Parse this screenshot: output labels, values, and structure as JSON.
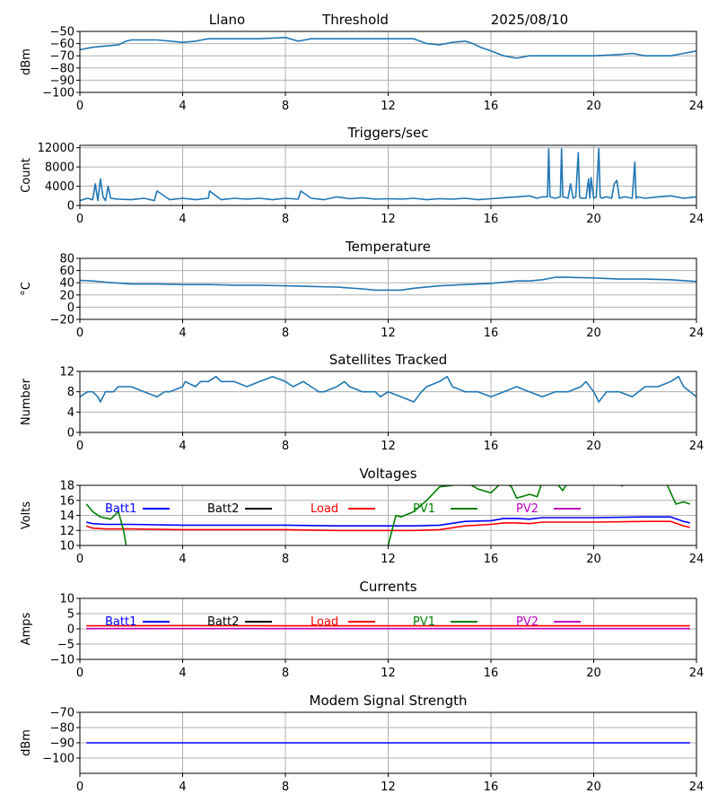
{
  "header": {
    "site": "Llano",
    "label": "Threshold",
    "date": "2025/08/10"
  },
  "colors": {
    "default": "#1f77b4",
    "grid": "#b0b0b0",
    "Batt1": "#0000ff",
    "Batt2": "#000000",
    "Load": "#ff0000",
    "PV1": "#008000",
    "PV2": "#bf00bf"
  },
  "chart_data": [
    {
      "id": "threshold",
      "type": "line",
      "title": "",
      "ylabel": "dBm",
      "xlim": [
        0,
        24
      ],
      "ylim": [
        -100,
        -50
      ],
      "xticks": [
        0,
        4,
        8,
        12,
        16,
        20,
        24
      ],
      "yticks": [
        -100,
        -90,
        -80,
        -70,
        -60,
        -50
      ],
      "series": [
        {
          "color": "default",
          "x": [
            0,
            0.5,
            1,
            1.5,
            1.8,
            2,
            3,
            4,
            4.5,
            5,
            6,
            7,
            8,
            8.5,
            9,
            10,
            11,
            12,
            13,
            13.5,
            14,
            14.5,
            15,
            15.3,
            15.6,
            16,
            16.5,
            17,
            17.5,
            18,
            18.5,
            19,
            20,
            21,
            21.5,
            22,
            23,
            23.5,
            24
          ],
          "y": [
            -65,
            -63,
            -62,
            -61,
            -58,
            -57,
            -57,
            -59,
            -58,
            -56,
            -56,
            -56,
            -55,
            -58,
            -56,
            -56,
            -56,
            -56,
            -56,
            -60,
            -61,
            -59,
            -58,
            -60,
            -63,
            -66,
            -70,
            -72,
            -70,
            -70,
            -70,
            -70,
            -70,
            -69,
            -68,
            -70,
            -70,
            -68,
            -66
          ]
        }
      ]
    },
    {
      "id": "triggers",
      "type": "line",
      "title": "Triggers/sec",
      "ylabel": "Count",
      "xlim": [
        0,
        24
      ],
      "ylim": [
        0,
        12500
      ],
      "xticks": [
        0,
        4,
        8,
        12,
        16,
        20,
        24
      ],
      "yticks": [
        0,
        4000,
        8000,
        12000
      ],
      "series": [
        {
          "color": "default",
          "x": [
            0,
            0.3,
            0.5,
            0.6,
            0.7,
            0.8,
            0.9,
            1.0,
            1.1,
            1.2,
            1.5,
            2.0,
            2.5,
            2.9,
            3.0,
            3.5,
            4.0,
            4.5,
            5.0,
            5.05,
            5.5,
            6.0,
            6.5,
            7.0,
            7.5,
            8.0,
            8.5,
            8.6,
            9.0,
            9.5,
            10.0,
            10.5,
            11.0,
            11.5,
            12.0,
            12.5,
            13.0,
            13.5,
            14.0,
            14.5,
            15.0,
            15.5,
            16.0,
            16.5,
            17.0,
            17.5,
            17.8,
            18.0,
            18.2,
            18.25,
            18.3,
            18.5,
            18.7,
            18.75,
            18.8,
            19.0,
            19.1,
            19.2,
            19.3,
            19.4,
            19.45,
            19.5,
            19.7,
            19.8,
            19.85,
            19.9,
            20.0,
            20.1,
            20.2,
            20.25,
            20.3,
            20.5,
            20.7,
            20.8,
            20.9,
            21.0,
            21.2,
            21.5,
            21.6,
            21.65,
            21.7,
            22.0,
            22.5,
            23.0,
            23.5,
            24.0
          ],
          "y": [
            1000,
            1500,
            1200,
            4500,
            1000,
            5500,
            1800,
            1000,
            4000,
            1500,
            1300,
            1200,
            1500,
            1000,
            3000,
            1200,
            1500,
            1200,
            1500,
            3000,
            1200,
            1500,
            1300,
            1500,
            1200,
            1500,
            1300,
            3000,
            1500,
            1200,
            1800,
            1400,
            1600,
            1300,
            1400,
            1300,
            1500,
            1200,
            1400,
            1300,
            1500,
            1200,
            1400,
            1600,
            1800,
            2000,
            1500,
            1800,
            1800,
            11800,
            1800,
            1500,
            1800,
            11800,
            1800,
            1500,
            4500,
            1500,
            1800,
            11000,
            1800,
            1500,
            1500,
            5500,
            1500,
            5800,
            1500,
            1800,
            11800,
            1800,
            1500,
            1800,
            1500,
            4500,
            5200,
            1500,
            1800,
            1500,
            9000,
            1500,
            1800,
            1500,
            1800,
            2000,
            1500,
            1800
          ]
        }
      ]
    },
    {
      "id": "temperature",
      "type": "line",
      "title": "Temperature",
      "ylabel": "°C",
      "xlim": [
        0,
        24
      ],
      "ylim": [
        -20,
        80
      ],
      "xticks": [
        0,
        4,
        8,
        12,
        16,
        20,
        24
      ],
      "yticks": [
        -20,
        0,
        20,
        40,
        60,
        80
      ],
      "series": [
        {
          "color": "default",
          "x": [
            0,
            0.5,
            1,
            2,
            3,
            4,
            5,
            6,
            7,
            8,
            9,
            10,
            11,
            11.5,
            12,
            12.5,
            13,
            14,
            15,
            16,
            16.5,
            17,
            17.5,
            18,
            18.5,
            19,
            20,
            20.5,
            21,
            22,
            23,
            24
          ],
          "y": [
            44,
            43,
            41,
            38,
            38,
            37,
            37,
            36,
            36,
            35,
            34,
            33,
            30,
            28,
            28,
            28,
            31,
            35,
            37,
            39,
            41,
            43,
            43,
            45,
            49,
            49,
            48,
            47,
            46,
            46,
            45,
            42
          ]
        }
      ]
    },
    {
      "id": "satellites",
      "type": "line",
      "title": "Satellites Tracked",
      "ylabel": "Number",
      "xlim": [
        0,
        24
      ],
      "ylim": [
        0,
        12
      ],
      "xticks": [
        0,
        4,
        8,
        12,
        16,
        20,
        24
      ],
      "yticks": [
        0,
        4,
        8,
        12
      ],
      "series": [
        {
          "color": "default",
          "x": [
            0,
            0.3,
            0.5,
            0.7,
            0.8,
            1.0,
            1.3,
            1.5,
            2.0,
            2.5,
            3.0,
            3.3,
            3.5,
            4.0,
            4.1,
            4.5,
            4.7,
            5.0,
            5.3,
            5.5,
            6.0,
            6.5,
            7.0,
            7.5,
            8.0,
            8.3,
            8.7,
            9.0,
            9.3,
            9.5,
            10.0,
            10.3,
            10.5,
            11.0,
            11.5,
            11.7,
            12.0,
            12.5,
            13.0,
            13.3,
            13.5,
            14.0,
            14.3,
            14.5,
            15.0,
            15.5,
            16.0,
            16.5,
            17.0,
            17.5,
            18.0,
            18.5,
            19.0,
            19.5,
            19.7,
            20.0,
            20.2,
            20.5,
            21.0,
            21.5,
            22.0,
            22.5,
            23.0,
            23.3,
            23.5,
            24.0
          ],
          "y": [
            7,
            8,
            8,
            7,
            6,
            8,
            8,
            9,
            9,
            8,
            7,
            8,
            8,
            9,
            10,
            9,
            10,
            10,
            11,
            10,
            10,
            9,
            10,
            11,
            10,
            9,
            10,
            9,
            8,
            8,
            9,
            10,
            9,
            8,
            8,
            7,
            8,
            7,
            6,
            8,
            9,
            10,
            11,
            9,
            8,
            8,
            7,
            8,
            9,
            8,
            7,
            8,
            8,
            9,
            10,
            8,
            6,
            8,
            8,
            7,
            9,
            9,
            10,
            11,
            9,
            7
          ]
        }
      ]
    },
    {
      "id": "voltages",
      "type": "line",
      "title": "Voltages",
      "ylabel": "Volts",
      "xlim": [
        0,
        24
      ],
      "ylim": [
        10,
        18
      ],
      "xticks": [
        0,
        4,
        8,
        12,
        16,
        20,
        24
      ],
      "yticks": [
        10,
        12,
        14,
        16,
        18
      ],
      "legend": [
        "Batt1",
        "Batt2",
        "Load",
        "PV1",
        "PV2"
      ],
      "series": [
        {
          "name": "Batt1",
          "color": "Batt1",
          "x": [
            0.25,
            0.5,
            1,
            2,
            4,
            6,
            8,
            10,
            12,
            13,
            14,
            15,
            16,
            16.5,
            17,
            17.5,
            18,
            20,
            22,
            23,
            23.5,
            23.75
          ],
          "y": [
            13.1,
            12.9,
            12.8,
            12.8,
            12.7,
            12.7,
            12.7,
            12.6,
            12.6,
            12.6,
            12.7,
            13.2,
            13.3,
            13.6,
            13.6,
            13.5,
            13.7,
            13.7,
            13.8,
            13.8,
            13.2,
            13.0
          ]
        },
        {
          "name": "Load",
          "color": "Load",
          "x": [
            0.25,
            0.5,
            1,
            2,
            4,
            6,
            8,
            10,
            12,
            13,
            14,
            15,
            16,
            16.5,
            17,
            17.5,
            18,
            20,
            22,
            23,
            23.5,
            23.75
          ],
          "y": [
            12.6,
            12.3,
            12.2,
            12.2,
            12.1,
            12.1,
            12.1,
            12.0,
            12.0,
            12.0,
            12.1,
            12.6,
            12.8,
            13.0,
            13.0,
            12.9,
            13.1,
            13.1,
            13.2,
            13.2,
            12.6,
            12.4
          ]
        },
        {
          "name": "PV1",
          "color": "PV1",
          "x": [
            0.25,
            0.5,
            0.8,
            1.2,
            1.5,
            1.7,
            1.8
          ],
          "y": [
            15.5,
            14.5,
            13.8,
            13.5,
            14.5,
            12.0,
            10.0
          ]
        },
        {
          "name": "PV1",
          "color": "PV1",
          "x": [
            12.0,
            12.3,
            12.5,
            13.0,
            13.5,
            14.0,
            14.5,
            15.0,
            15.5,
            16.0,
            16.3,
            16.5,
            16.8,
            17.0,
            17.2,
            17.5,
            17.8,
            18.0,
            18.5,
            18.8,
            19.0
          ],
          "y": [
            10.0,
            14.0,
            13.8,
            14.5,
            16.0,
            17.8,
            18.0,
            18.5,
            17.5,
            17.0,
            18.0,
            18.5,
            17.8,
            16.3,
            16.5,
            16.8,
            16.5,
            18.5,
            18.5,
            17.3,
            18.5
          ]
        },
        {
          "name": "PV1",
          "color": "PV1",
          "x": [
            21.0,
            21.1,
            21.3
          ],
          "y": [
            18.5,
            17.9,
            18.5
          ]
        },
        {
          "name": "PV1",
          "color": "PV1",
          "x": [
            22.8,
            23.2,
            23.5,
            23.75
          ],
          "y": [
            18.5,
            15.5,
            15.8,
            15.5
          ]
        }
      ]
    },
    {
      "id": "currents",
      "type": "line",
      "title": "Currents",
      "ylabel": "Amps",
      "xlim": [
        0,
        24
      ],
      "ylim": [
        -10,
        10
      ],
      "xticks": [
        0,
        4,
        8,
        12,
        16,
        20,
        24
      ],
      "yticks": [
        -10,
        -5,
        0,
        5,
        10
      ],
      "legend": [
        "Batt1",
        "Batt2",
        "Load",
        "PV1",
        "PV2"
      ],
      "series": [
        {
          "name": "Load",
          "color": "Load",
          "x": [
            0.25,
            4,
            8,
            12,
            16,
            20,
            23.75
          ],
          "y": [
            1.0,
            1.1,
            1.0,
            1.0,
            1.0,
            1.0,
            1.0
          ]
        },
        {
          "name": "PV2",
          "color": "PV2",
          "x": [
            0.25,
            23.75
          ],
          "y": [
            0.1,
            0.1
          ]
        }
      ]
    },
    {
      "id": "modem",
      "type": "line",
      "title": "Modem Signal Strength",
      "ylabel": "dBm",
      "xlim": [
        0,
        24
      ],
      "ylim": [
        -110,
        -70
      ],
      "xticks": [
        0,
        4,
        8,
        12,
        16,
        20,
        24
      ],
      "yticks": [
        -100,
        -90,
        -80,
        -70
      ],
      "series": [
        {
          "color": "Batt1",
          "x": [
            0.25,
            23.75
          ],
          "y": [
            -90,
            -90
          ]
        }
      ]
    }
  ]
}
